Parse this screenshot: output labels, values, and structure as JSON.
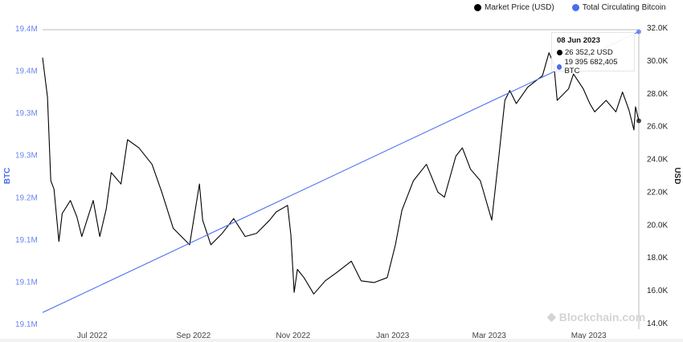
{
  "legend": {
    "items": [
      {
        "label": "Market Price (USD)",
        "color": "#000000"
      },
      {
        "label": "Total Circulating Bitcoin",
        "color": "#4a6cf0"
      }
    ]
  },
  "tooltip": {
    "date": "08 Jun 2023",
    "price": "26 352,2 USD",
    "supply": "19 395 682,405 BTC"
  },
  "watermark": "Blockchain.com",
  "chart_data": {
    "type": "line",
    "grid": false,
    "legend_position": "top-right",
    "x_range": [
      "2022-06-08",
      "2023-06-08"
    ],
    "x_ticks": [
      {
        "date": "2022-07-01",
        "label": "Jul 2022"
      },
      {
        "date": "2022-09-01",
        "label": "Sep 2022"
      },
      {
        "date": "2022-11-01",
        "label": "Nov 2022"
      },
      {
        "date": "2023-01-01",
        "label": "Jan 2023"
      },
      {
        "date": "2023-03-01",
        "label": "Mar 2023"
      },
      {
        "date": "2023-05-01",
        "label": "May 2023"
      }
    ],
    "y_left": {
      "label": "BTC",
      "color": "#4a6cf0",
      "range": [
        19050000,
        19400000
      ],
      "ticks": [
        {
          "value": 19400000,
          "label": "19.4M"
        },
        {
          "value": 19350000,
          "label": "19.4M"
        },
        {
          "value": 19300000,
          "label": "19.3M"
        },
        {
          "value": 19250000,
          "label": "19.3M"
        },
        {
          "value": 19200000,
          "label": "19.2M"
        },
        {
          "value": 19150000,
          "label": "19.1M"
        },
        {
          "value": 19100000,
          "label": "19.1M"
        },
        {
          "value": 19050000,
          "label": "19.1M"
        }
      ]
    },
    "y_right": {
      "label": "USD",
      "range": [
        14000,
        32000
      ],
      "ticks": [
        {
          "value": 32000,
          "label": "32.0K"
        },
        {
          "value": 30000,
          "label": "30.0K"
        },
        {
          "value": 28000,
          "label": "28.0K"
        },
        {
          "value": 26000,
          "label": "26.0K"
        },
        {
          "value": 24000,
          "label": "24.0K"
        },
        {
          "value": 22000,
          "label": "22.0K"
        },
        {
          "value": 20000,
          "label": "20.0K"
        },
        {
          "value": 18000,
          "label": "18.0K"
        },
        {
          "value": 16000,
          "label": "16.0K"
        },
        {
          "value": 14000,
          "label": "14.0K"
        }
      ]
    },
    "series": [
      {
        "name": "Market Price (USD)",
        "axis": "right",
        "color": "#000000",
        "points": [
          [
            "2022-06-08",
            30200
          ],
          [
            "2022-06-11",
            27800
          ],
          [
            "2022-06-13",
            22700
          ],
          [
            "2022-06-15",
            22200
          ],
          [
            "2022-06-18",
            19000
          ],
          [
            "2022-06-20",
            20700
          ],
          [
            "2022-06-25",
            21500
          ],
          [
            "2022-06-29",
            20500
          ],
          [
            "2022-07-02",
            19300
          ],
          [
            "2022-07-09",
            21500
          ],
          [
            "2022-07-13",
            19300
          ],
          [
            "2022-07-17",
            21000
          ],
          [
            "2022-07-20",
            23200
          ],
          [
            "2022-07-26",
            22500
          ],
          [
            "2022-07-30",
            25200
          ],
          [
            "2022-08-06",
            24700
          ],
          [
            "2022-08-14",
            23700
          ],
          [
            "2022-08-20",
            22000
          ],
          [
            "2022-08-27",
            19800
          ],
          [
            "2022-09-06",
            18800
          ],
          [
            "2022-09-12",
            22500
          ],
          [
            "2022-09-14",
            20300
          ],
          [
            "2022-09-19",
            18800
          ],
          [
            "2022-09-26",
            19500
          ],
          [
            "2022-10-03",
            20400
          ],
          [
            "2022-10-10",
            19300
          ],
          [
            "2022-10-17",
            19500
          ],
          [
            "2022-10-25",
            20300
          ],
          [
            "2022-10-29",
            20800
          ],
          [
            "2022-11-05",
            21200
          ],
          [
            "2022-11-07",
            19400
          ],
          [
            "2022-11-09",
            15900
          ],
          [
            "2022-11-11",
            17300
          ],
          [
            "2022-11-15",
            16800
          ],
          [
            "2022-11-21",
            15800
          ],
          [
            "2022-11-28",
            16600
          ],
          [
            "2022-12-05",
            17100
          ],
          [
            "2022-12-14",
            17800
          ],
          [
            "2022-12-20",
            16600
          ],
          [
            "2022-12-28",
            16500
          ],
          [
            "2023-01-05",
            16800
          ],
          [
            "2023-01-10",
            18800
          ],
          [
            "2023-01-14",
            20900
          ],
          [
            "2023-01-21",
            22700
          ],
          [
            "2023-01-29",
            23700
          ],
          [
            "2023-02-05",
            22000
          ],
          [
            "2023-02-09",
            21700
          ],
          [
            "2023-02-16",
            24200
          ],
          [
            "2023-02-20",
            24700
          ],
          [
            "2023-02-25",
            23400
          ],
          [
            "2023-03-03",
            22700
          ],
          [
            "2023-03-10",
            20300
          ],
          [
            "2023-03-14",
            23900
          ],
          [
            "2023-03-18",
            27600
          ],
          [
            "2023-03-21",
            28200
          ],
          [
            "2023-03-25",
            27400
          ],
          [
            "2023-04-01",
            28400
          ],
          [
            "2023-04-10",
            29100
          ],
          [
            "2023-04-14",
            30500
          ],
          [
            "2023-04-17",
            29800
          ],
          [
            "2023-04-19",
            27600
          ],
          [
            "2023-04-26",
            28300
          ],
          [
            "2023-04-29",
            29200
          ],
          [
            "2023-05-05",
            28300
          ],
          [
            "2023-05-09",
            27400
          ],
          [
            "2023-05-12",
            26900
          ],
          [
            "2023-05-19",
            27600
          ],
          [
            "2023-05-25",
            26900
          ],
          [
            "2023-05-29",
            28100
          ],
          [
            "2023-06-02",
            27000
          ],
          [
            "2023-06-05",
            25800
          ],
          [
            "2023-06-06",
            27200
          ],
          [
            "2023-06-08",
            26352.2
          ]
        ]
      },
      {
        "name": "Total Circulating Bitcoin",
        "axis": "left",
        "color": "#4a6cf0",
        "points": [
          [
            "2022-06-08",
            19063000
          ],
          [
            "2023-06-08",
            19395682.405
          ]
        ]
      }
    ]
  }
}
